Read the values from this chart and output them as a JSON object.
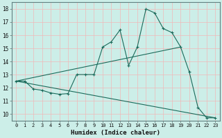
{
  "xlabel": "Humidex (Indice chaleur)",
  "background_color": "#cceee8",
  "grid_color": "#f0b8b8",
  "line_color": "#1a6a5a",
  "xlim": [
    -0.5,
    23.5
  ],
  "ylim": [
    9.5,
    18.5
  ],
  "xticks": [
    0,
    1,
    2,
    3,
    4,
    5,
    6,
    7,
    8,
    9,
    10,
    11,
    12,
    13,
    14,
    15,
    16,
    17,
    18,
    19,
    20,
    21,
    22,
    23
  ],
  "yticks": [
    10,
    11,
    12,
    13,
    14,
    15,
    16,
    17,
    18
  ],
  "curve1_x": [
    0,
    1,
    2,
    3,
    4,
    5,
    6,
    7,
    8,
    9,
    10,
    11,
    12,
    13,
    14,
    15,
    16,
    17,
    18,
    19,
    20,
    21,
    22,
    23
  ],
  "curve1_y": [
    12.5,
    12.5,
    11.9,
    11.8,
    11.6,
    11.5,
    11.55,
    13.0,
    13.0,
    13.0,
    15.1,
    15.5,
    16.4,
    13.7,
    15.1,
    18.0,
    17.7,
    16.5,
    16.2,
    15.1,
    13.2,
    10.5,
    9.7,
    9.7
  ],
  "curve2_x": [
    0,
    19
  ],
  "curve2_y": [
    12.5,
    15.1
  ],
  "curve3_x": [
    0,
    23
  ],
  "curve3_y": [
    12.5,
    9.7
  ]
}
